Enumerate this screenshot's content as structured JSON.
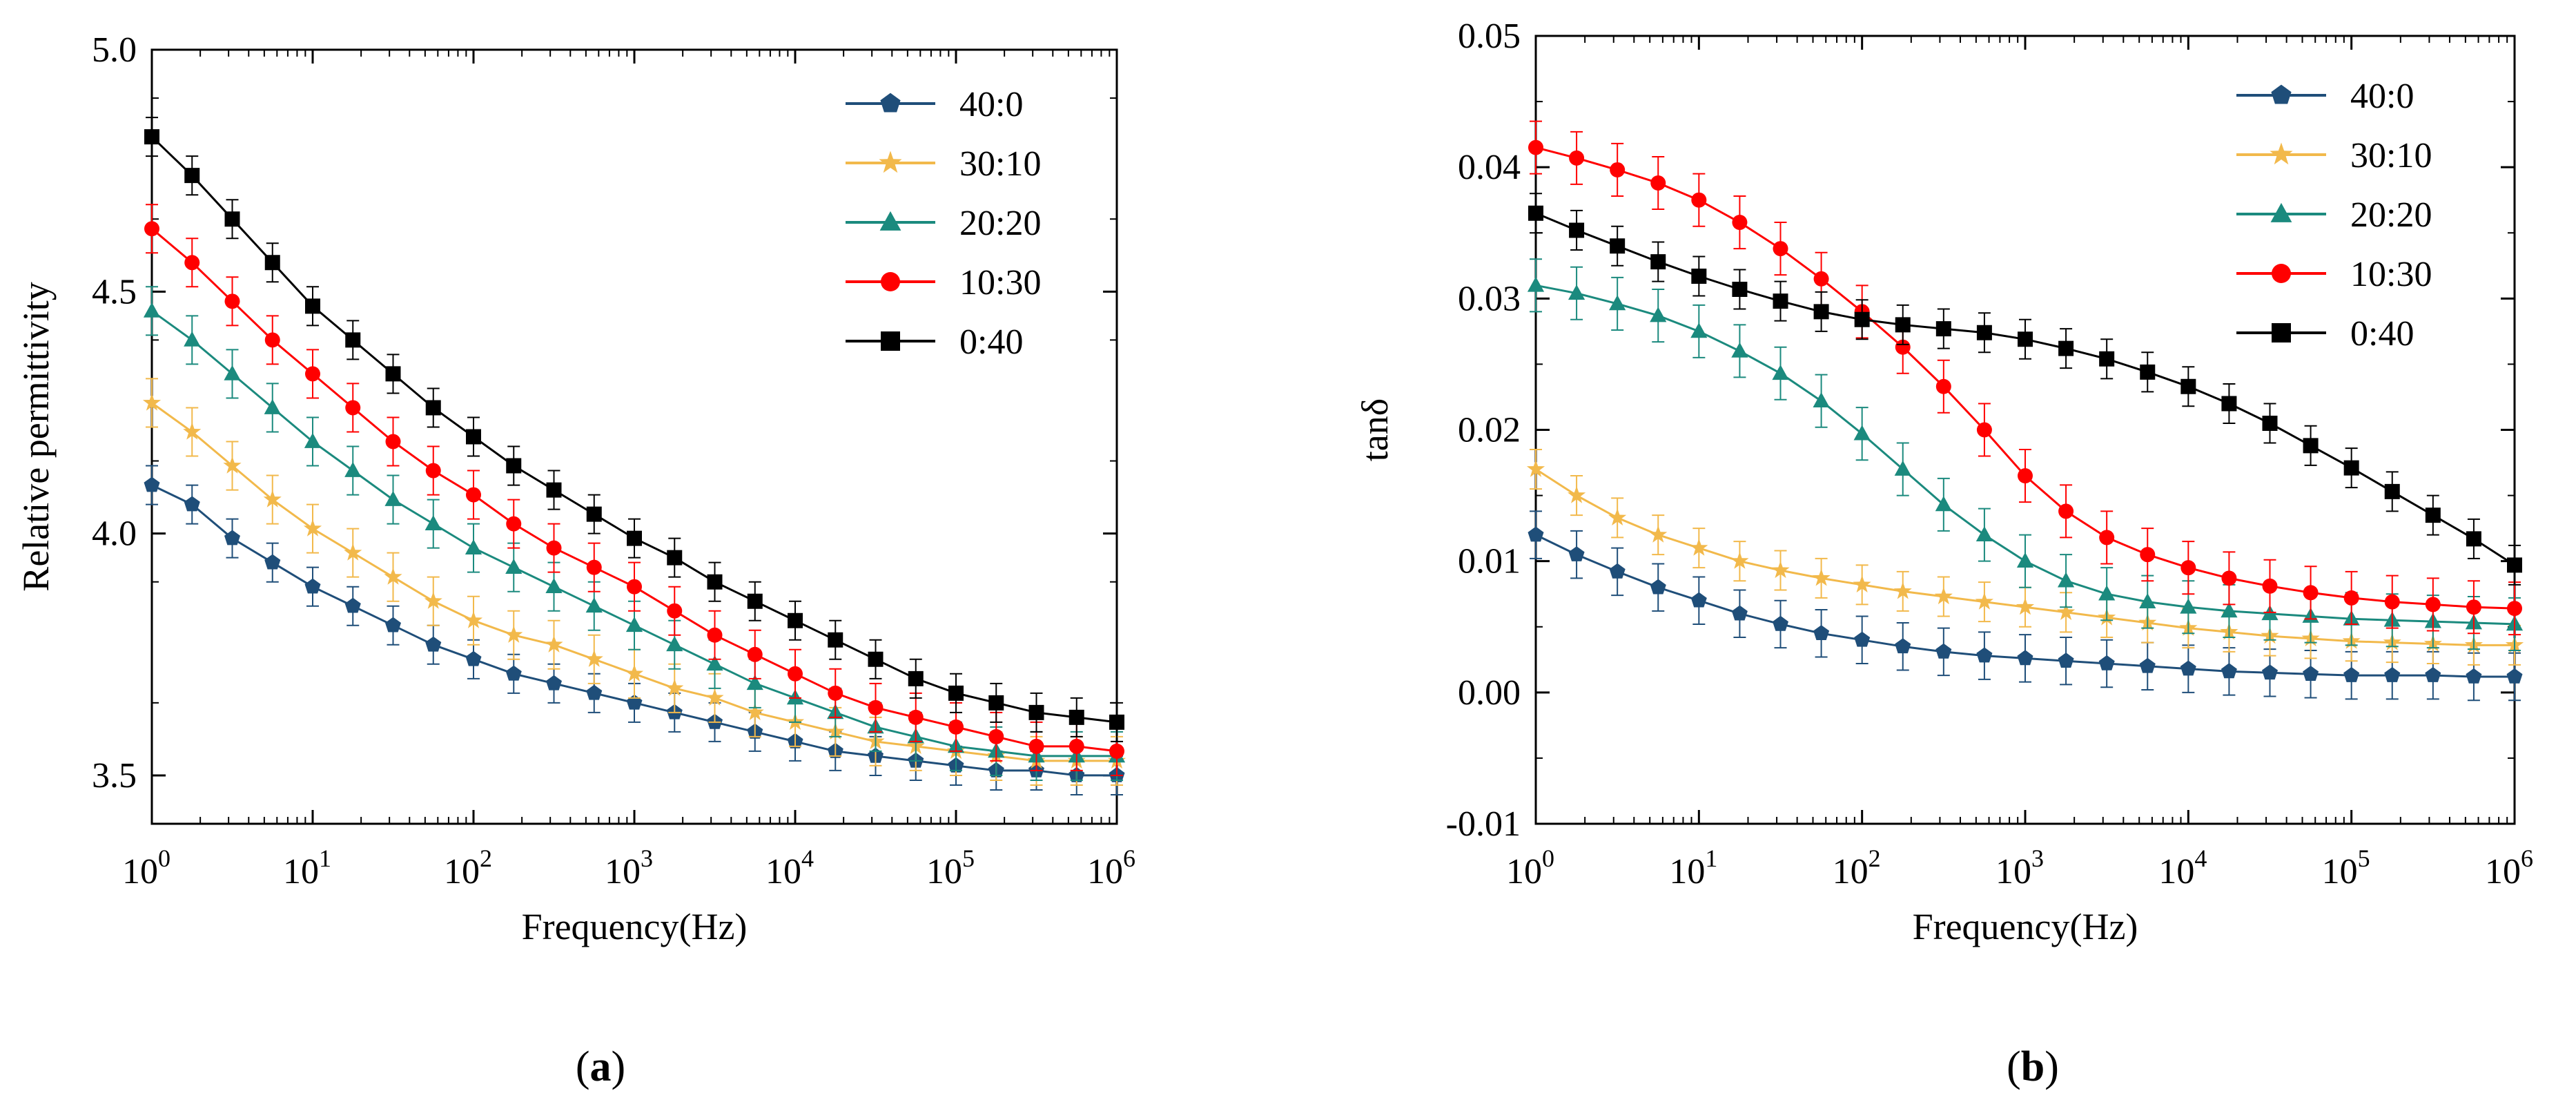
{
  "chart_data": [
    {
      "type": "line",
      "panel_label": "a",
      "title": "",
      "xlabel": "Frequency(Hz)",
      "ylabel": "Relative permittivity",
      "xscale": "log",
      "xlim": [
        1,
        1000000
      ],
      "ylim": [
        3.4,
        5.0
      ],
      "xtick_bases": [
        "10",
        "10",
        "10",
        "10",
        "10",
        "10",
        "10"
      ],
      "xtick_exponents": [
        "0",
        "1",
        "2",
        "3",
        "4",
        "5",
        "6"
      ],
      "yticks": [
        3.5,
        4.0,
        4.5,
        5.0
      ],
      "ytick_labels": [
        "3.5",
        "4.0",
        "4.5",
        "5.0"
      ],
      "legend_position": "top-right",
      "series": [
        {
          "name": "40:0",
          "color": "#1f4e79",
          "marker": "pentagon",
          "error": 0.04,
          "values": [
            4.1,
            4.06,
            3.99,
            3.94,
            3.89,
            3.85,
            3.81,
            3.77,
            3.74,
            3.71,
            3.69,
            3.67,
            3.65,
            3.63,
            3.61,
            3.59,
            3.57,
            3.55,
            3.54,
            3.53,
            3.52,
            3.51,
            3.51,
            3.5,
            3.5
          ]
        },
        {
          "name": "30:10",
          "color": "#f2b94b",
          "marker": "star",
          "error": 0.05,
          "values": [
            4.27,
            4.21,
            4.14,
            4.07,
            4.01,
            3.96,
            3.91,
            3.86,
            3.82,
            3.79,
            3.77,
            3.74,
            3.71,
            3.68,
            3.66,
            3.63,
            3.61,
            3.59,
            3.57,
            3.56,
            3.55,
            3.54,
            3.53,
            3.53,
            3.53
          ]
        },
        {
          "name": "20:20",
          "color": "#1b8a7e",
          "marker": "triangle",
          "error": 0.05,
          "values": [
            4.46,
            4.4,
            4.33,
            4.26,
            4.19,
            4.13,
            4.07,
            4.02,
            3.97,
            3.93,
            3.89,
            3.85,
            3.81,
            3.77,
            3.73,
            3.69,
            3.66,
            3.63,
            3.6,
            3.58,
            3.56,
            3.55,
            3.54,
            3.54,
            3.54
          ]
        },
        {
          "name": "10:30",
          "color": "#ff0000",
          "marker": "circle",
          "error": 0.05,
          "values": [
            4.63,
            4.56,
            4.48,
            4.4,
            4.33,
            4.26,
            4.19,
            4.13,
            4.08,
            4.02,
            3.97,
            3.93,
            3.89,
            3.84,
            3.79,
            3.75,
            3.71,
            3.67,
            3.64,
            3.62,
            3.6,
            3.58,
            3.56,
            3.56,
            3.55
          ]
        },
        {
          "name": "0:40",
          "color": "#000000",
          "marker": "square",
          "error": 0.04,
          "values": [
            4.82,
            4.74,
            4.65,
            4.56,
            4.47,
            4.4,
            4.33,
            4.26,
            4.2,
            4.14,
            4.09,
            4.04,
            3.99,
            3.95,
            3.9,
            3.86,
            3.82,
            3.78,
            3.74,
            3.7,
            3.67,
            3.65,
            3.63,
            3.62,
            3.61
          ]
        }
      ]
    },
    {
      "type": "line",
      "panel_label": "b",
      "title": "",
      "xlabel": "Frequency(Hz)",
      "ylabel": "tanδ",
      "xscale": "log",
      "xlim": [
        1,
        1000000
      ],
      "ylim": [
        -0.01,
        0.05
      ],
      "xtick_bases": [
        "10",
        "10",
        "10",
        "10",
        "10",
        "10",
        "10"
      ],
      "xtick_exponents": [
        "0",
        "1",
        "2",
        "3",
        "4",
        "5",
        "6"
      ],
      "yticks": [
        -0.01,
        0.0,
        0.01,
        0.02,
        0.03,
        0.04,
        0.05
      ],
      "ytick_labels": [
        "-0.01",
        "0.00",
        "0.01",
        "0.02",
        "0.03",
        "0.04",
        "0.05"
      ],
      "legend_position": "top-right",
      "series": [
        {
          "name": "40:0",
          "color": "#1f4e79",
          "marker": "pentagon",
          "error": 0.0018,
          "values": [
            0.012,
            0.0105,
            0.0092,
            0.008,
            0.007,
            0.006,
            0.0052,
            0.0045,
            0.004,
            0.0035,
            0.0031,
            0.0028,
            0.0026,
            0.0024,
            0.0022,
            0.002,
            0.0018,
            0.0016,
            0.0015,
            0.0014,
            0.0013,
            0.0013,
            0.0013,
            0.0012,
            0.0012
          ]
        },
        {
          "name": "30:10",
          "color": "#f2b94b",
          "marker": "star",
          "error": 0.0015,
          "values": [
            0.017,
            0.015,
            0.0133,
            0.012,
            0.011,
            0.01,
            0.0093,
            0.0087,
            0.0082,
            0.0077,
            0.0073,
            0.0069,
            0.0065,
            0.0061,
            0.0057,
            0.0053,
            0.0049,
            0.0046,
            0.0043,
            0.0041,
            0.0039,
            0.0038,
            0.0037,
            0.0036,
            0.0036
          ]
        },
        {
          "name": "20:20",
          "color": "#1b8a7e",
          "marker": "triangle",
          "error": 0.002,
          "values": [
            0.031,
            0.0304,
            0.0296,
            0.0287,
            0.0275,
            0.026,
            0.0243,
            0.0222,
            0.0197,
            0.017,
            0.0143,
            0.012,
            0.01,
            0.0085,
            0.0075,
            0.0069,
            0.0065,
            0.0062,
            0.006,
            0.0058,
            0.0056,
            0.0055,
            0.0054,
            0.0053,
            0.0052
          ]
        },
        {
          "name": "10:30",
          "color": "#ff0000",
          "marker": "circle",
          "error": 0.002,
          "values": [
            0.0415,
            0.0407,
            0.0398,
            0.0388,
            0.0375,
            0.0358,
            0.0338,
            0.0315,
            0.029,
            0.0263,
            0.0233,
            0.02,
            0.0165,
            0.0138,
            0.0118,
            0.0105,
            0.0095,
            0.0087,
            0.0081,
            0.0076,
            0.0072,
            0.0069,
            0.0067,
            0.0065,
            0.0064
          ]
        },
        {
          "name": "0:40",
          "color": "#000000",
          "marker": "square",
          "error": 0.0015,
          "values": [
            0.0365,
            0.0352,
            0.034,
            0.0328,
            0.0317,
            0.0307,
            0.0298,
            0.029,
            0.0284,
            0.028,
            0.0277,
            0.0274,
            0.0269,
            0.0262,
            0.0254,
            0.0244,
            0.0233,
            0.022,
            0.0205,
            0.0188,
            0.0171,
            0.0153,
            0.0135,
            0.0117,
            0.0097
          ]
        }
      ]
    }
  ]
}
